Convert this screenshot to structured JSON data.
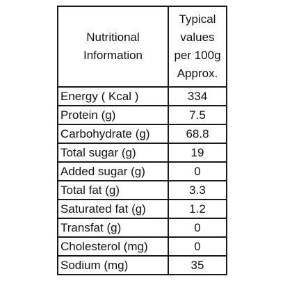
{
  "header": {
    "name_col_lines": [
      "Nutritional",
      "Information"
    ],
    "value_col_lines": [
      "Typical",
      "values",
      "per 100g",
      "Approx."
    ]
  },
  "rows": [
    {
      "name": "Energy ( Kcal )",
      "value": "334"
    },
    {
      "name": "Protein  (g)",
      "value": "7.5"
    },
    {
      "name": "Carbohydrate (g)",
      "value": "68.8"
    },
    {
      "name": "Total sugar (g)",
      "value": "19"
    },
    {
      "name": "Added sugar (g)",
      "value": "0"
    },
    {
      "name": "Total fat (g)",
      "value": "3.3"
    },
    {
      "name": "Saturated fat (g)",
      "value": "1.2"
    },
    {
      "name": "Transfat (g)",
      "value": "0"
    },
    {
      "name": "Cholesterol (mg)",
      "value": "0"
    },
    {
      "name": "Sodium (mg)",
      "value": "35"
    }
  ]
}
